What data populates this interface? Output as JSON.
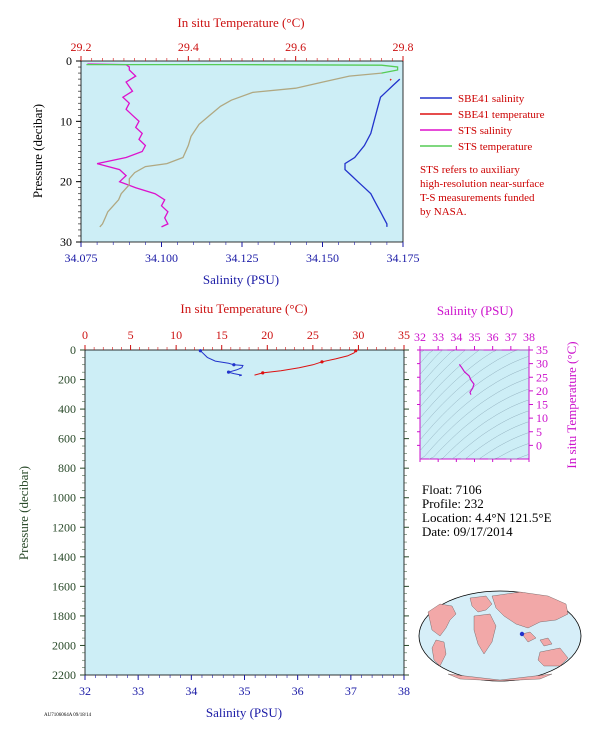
{
  "colors": {
    "plot_bg": "#cdeef6",
    "sal_axis": "#1a1aa6",
    "temp_axis": "#cc1111",
    "pressure_axis": "#2a4a2a",
    "sbe_salinity": "#2233cc",
    "sbe_temperature": "#dd1111",
    "sts_salinity": "#dd11cc",
    "sts_temperature": "#55cc55",
    "overlap": "#b0a882",
    "ts_axis": "#cc11cc",
    "footnote": "#cc0000",
    "info": "#000000"
  },
  "legend": {
    "items": [
      {
        "label": "SBE41 salinity",
        "color": "#2233cc"
      },
      {
        "label": "SBE41 temperature",
        "color": "#dd1111"
      },
      {
        "label": "STS salinity",
        "color": "#dd11cc"
      },
      {
        "label": "STS temperature",
        "color": "#55cc55"
      }
    ],
    "note_lines": [
      "STS refers to auxiliary",
      "high-resolution near-surface",
      "T-S measurements funded",
      "by NASA."
    ]
  },
  "info": {
    "float": "Float:  7106",
    "profile": "Profile:  232",
    "location": "Location:  4.4°N  121.5°E",
    "date": "Date:  09/17/2014"
  },
  "footer_code": "AU7106064A 09/18/14",
  "chart_data": [
    {
      "type": "line",
      "panel": "near-surface",
      "xlabel": "Salinity (PSU)",
      "x2label": "In situ Temperature (°C)",
      "ylabel": "Pressure (decibar)",
      "xlim": [
        34.075,
        34.175
      ],
      "x2lim": [
        29.2,
        29.8
      ],
      "ylim": [
        0,
        30
      ],
      "xticks": [
        "34.075",
        "34.100",
        "34.125",
        "34.150",
        "34.175"
      ],
      "x2ticks": [
        "29.2",
        "29.4",
        "29.6",
        "29.8"
      ],
      "yticks": [
        "0",
        "10",
        "20",
        "30"
      ],
      "series": [
        {
          "name": "SBE41 salinity",
          "axis": "salinity",
          "points": [
            [
              34.174,
              3
            ],
            [
              34.172,
              4
            ],
            [
              34.17,
              5
            ],
            [
              34.168,
              6
            ],
            [
              34.167,
              8
            ],
            [
              34.166,
              10
            ],
            [
              34.165,
              12
            ],
            [
              34.163,
              14
            ],
            [
              34.16,
              16
            ],
            [
              34.157,
              17
            ],
            [
              34.157,
              18
            ],
            [
              34.159,
              19
            ],
            [
              34.161,
              20
            ],
            [
              34.163,
              21
            ],
            [
              34.165,
              22
            ],
            [
              34.166,
              23
            ],
            [
              34.167,
              24
            ],
            [
              34.168,
              25
            ],
            [
              34.169,
              26
            ],
            [
              34.17,
              27
            ],
            [
              34.17,
              27.5
            ]
          ]
        },
        {
          "name": "SBE41 temperature",
          "axis": "temperature",
          "points": [
            [
              29.778,
              3
            ],
            [
              29.776,
              3.2
            ]
          ]
        },
        {
          "name": "STS salinity",
          "axis": "salinity",
          "points": [
            [
              34.077,
              0.5
            ],
            [
              34.089,
              0.6
            ],
            [
              34.09,
              1.0
            ],
            [
              34.09,
              1.5
            ],
            [
              34.092,
              2.5
            ],
            [
              34.089,
              3.5
            ],
            [
              34.091,
              5
            ],
            [
              34.088,
              6
            ],
            [
              34.09,
              7
            ],
            [
              34.089,
              8
            ],
            [
              34.091,
              9
            ],
            [
              34.093,
              10
            ],
            [
              34.092,
              11
            ],
            [
              34.094,
              12
            ],
            [
              34.093,
              13
            ],
            [
              34.095,
              14
            ],
            [
              34.094,
              15
            ],
            [
              34.089,
              16
            ],
            [
              34.08,
              17
            ],
            [
              34.087,
              18
            ],
            [
              34.089,
              19
            ],
            [
              34.087,
              20
            ],
            [
              34.092,
              21
            ],
            [
              34.098,
              22
            ],
            [
              34.101,
              23
            ],
            [
              34.1,
              24
            ],
            [
              34.102,
              25
            ],
            [
              34.101,
              26
            ],
            [
              34.102,
              27
            ],
            [
              34.1,
              27.5
            ]
          ]
        },
        {
          "name": "STS temperature",
          "axis": "temperature",
          "points": [
            [
              29.21,
              0.6
            ],
            [
              29.47,
              0.6
            ],
            [
              29.76,
              0.7
            ],
            [
              29.79,
              1.0
            ],
            [
              29.79,
              1.5
            ],
            [
              29.76,
              2.0
            ]
          ]
        },
        {
          "name": "overlap",
          "axis": "temperature",
          "points": [
            [
              29.76,
              2.0
            ],
            [
              29.7,
              2.5
            ],
            [
              29.65,
              3.5
            ],
            [
              29.6,
              4.5
            ],
            [
              29.52,
              5.2
            ],
            [
              29.48,
              6.5
            ],
            [
              29.46,
              7.5
            ],
            [
              29.44,
              9
            ],
            [
              29.42,
              10.5
            ],
            [
              29.405,
              12.5
            ],
            [
              29.4,
              14
            ],
            [
              29.39,
              16
            ],
            [
              29.36,
              17
            ],
            [
              29.32,
              17.5
            ],
            [
              29.3,
              18.5
            ],
            [
              29.29,
              19.5
            ],
            [
              29.29,
              20.5
            ],
            [
              29.275,
              22
            ],
            [
              29.27,
              23
            ],
            [
              29.26,
              24
            ],
            [
              29.25,
              25
            ],
            [
              29.245,
              26
            ],
            [
              29.24,
              27
            ],
            [
              29.235,
              27.5
            ]
          ]
        }
      ]
    },
    {
      "type": "line",
      "panel": "full-profile",
      "xlabel": "Salinity (PSU)",
      "x2label": "In situ Temperature (°C)",
      "ylabel": "Pressure (decibar)",
      "xlim": [
        32,
        38
      ],
      "x2lim": [
        0,
        35
      ],
      "ylim": [
        0,
        2200
      ],
      "xticks": [
        "32",
        "33",
        "34",
        "35",
        "36",
        "37",
        "38"
      ],
      "x2ticks": [
        "0",
        "5",
        "10",
        "15",
        "20",
        "25",
        "30",
        "35"
      ],
      "yticks": [
        "0",
        "200",
        "400",
        "600",
        "800",
        "1000",
        "1200",
        "1400",
        "1600",
        "1800",
        "2000",
        "2200"
      ],
      "series": [
        {
          "name": "SBE41 salinity",
          "axis": "salinity",
          "points": [
            [
              34.17,
              5
            ],
            [
              34.3,
              50
            ],
            [
              34.45,
              75
            ],
            [
              34.7,
              90
            ],
            [
              34.8,
              100
            ],
            [
              34.97,
              105
            ],
            [
              34.95,
              120
            ],
            [
              34.85,
              135
            ],
            [
              34.7,
              150
            ],
            [
              34.8,
              160
            ],
            [
              34.95,
              170
            ],
            [
              34.9,
              175
            ]
          ]
        },
        {
          "name": "SBE41 temperature",
          "axis": "temperature",
          "points": [
            [
              29.7,
              5
            ],
            [
              29.5,
              20
            ],
            [
              28.8,
              40
            ],
            [
              27.5,
              60
            ],
            [
              26.0,
              80
            ],
            [
              25.0,
              100
            ],
            [
              23.5,
              120
            ],
            [
              21.5,
              140
            ],
            [
              19.5,
              155
            ],
            [
              18.6,
              170
            ]
          ]
        }
      ]
    },
    {
      "type": "scatter",
      "panel": "T-S inset",
      "xlabel": "Salinity (PSU)",
      "ylabel": "In situ Temperature (°C)",
      "xlim": [
        32,
        38
      ],
      "ylim": [
        -5,
        35
      ],
      "xticks": [
        "32",
        "33",
        "34",
        "35",
        "36",
        "37",
        "38"
      ],
      "yticks": [
        "0",
        "5",
        "10",
        "15",
        "20",
        "25",
        "30",
        "35"
      ],
      "series": [
        {
          "name": "profile T-S",
          "axis": "ts",
          "points": [
            [
              34.17,
              29.7
            ],
            [
              34.3,
              28.5
            ],
            [
              34.45,
              27
            ],
            [
              34.7,
              25.5
            ],
            [
              34.8,
              24
            ],
            [
              34.97,
              22.5
            ],
            [
              34.9,
              21
            ],
            [
              34.75,
              19.5
            ],
            [
              34.8,
              18.6
            ]
          ]
        }
      ]
    }
  ]
}
